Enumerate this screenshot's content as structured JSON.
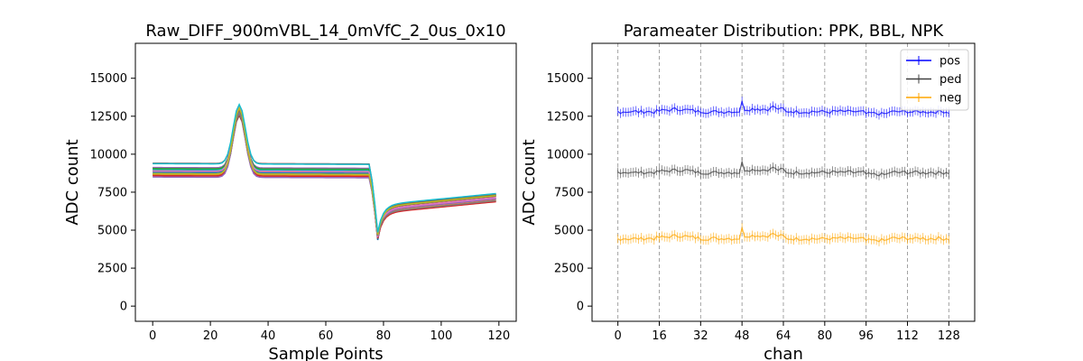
{
  "chart_data": [
    {
      "type": "line",
      "title": "Raw_DIFF_900mVBL_14_0mVfC_2_0us_0x10",
      "xlabel": "Sample Points",
      "ylabel": "ADC count",
      "xlim": [
        -6,
        126
      ],
      "ylim": [
        -1000,
        17300
      ],
      "xticks": [
        0,
        20,
        40,
        60,
        80,
        100,
        120
      ],
      "yticks": [
        0,
        2500,
        5000,
        7500,
        10000,
        12500,
        15000
      ],
      "waveform": {
        "n_samples": 120,
        "peak_sample": 30,
        "trough_sample": 78,
        "baseline_range": [
          8450,
          9450
        ],
        "peak_range": [
          12500,
          13400
        ],
        "trough_range": [
          4200,
          5000
        ],
        "tail_end_range": [
          6800,
          7600
        ]
      },
      "grid": false,
      "legend": "none"
    },
    {
      "type": "line",
      "title": "Parameater Distribution: PPK, BBL, NPK",
      "xlabel": "chan",
      "ylabel": "ADC count",
      "xlim": [
        -10,
        138
      ],
      "ylim": [
        -1000,
        17300
      ],
      "xticks": [
        0,
        16,
        32,
        48,
        64,
        80,
        96,
        112,
        128
      ],
      "yticks": [
        0,
        2500,
        5000,
        7500,
        10000,
        12500,
        15000
      ],
      "vgrid": "dashed at xticks",
      "legend": "top-right",
      "series": [
        {
          "name": "pos",
          "color": "#0000ff",
          "baseline": 12800
        },
        {
          "name": "ped",
          "color": "#404040",
          "baseline": 8800
        },
        {
          "name": "neg",
          "color": "#ffa500",
          "baseline": 4450
        }
      ]
    }
  ]
}
